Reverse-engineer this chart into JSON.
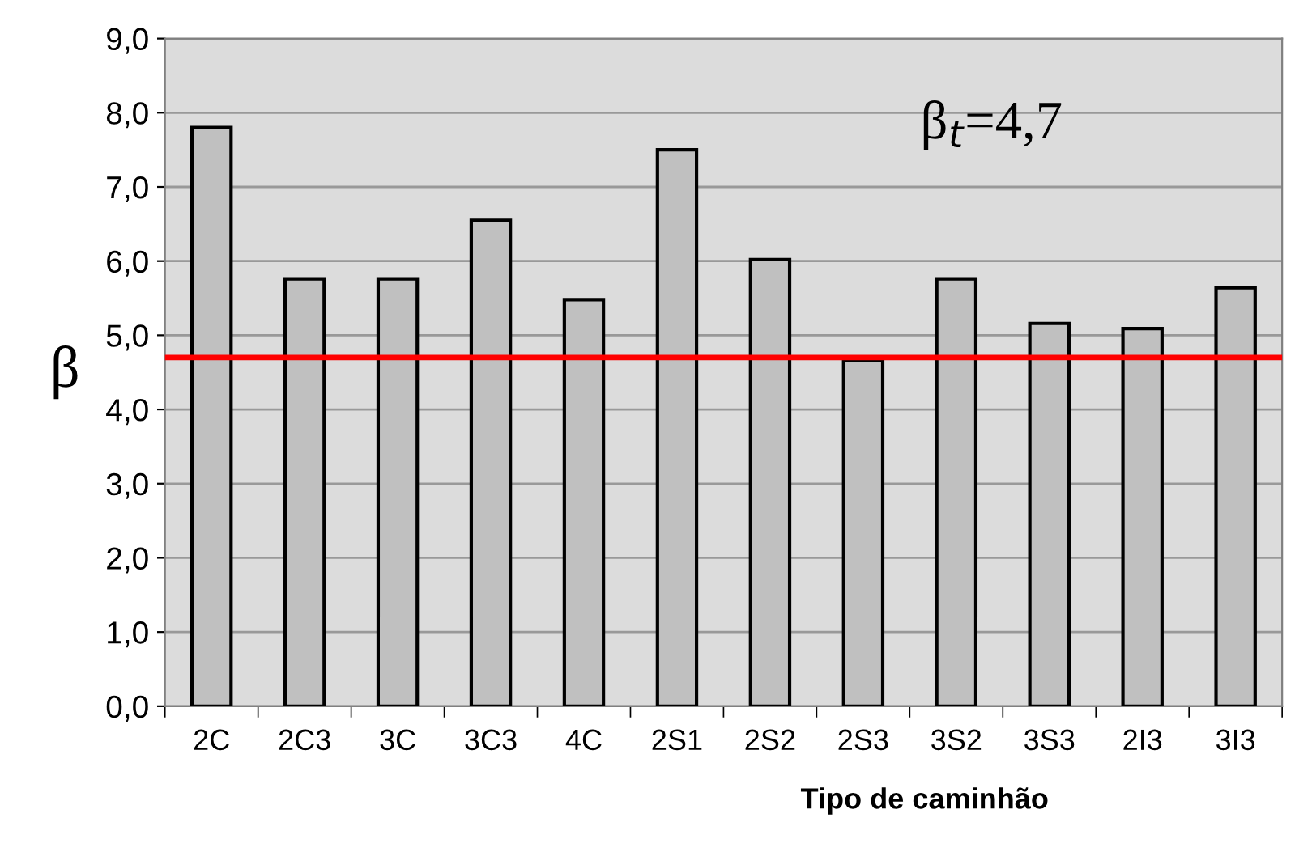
{
  "chart_data": {
    "type": "bar",
    "xlabel": "Tipo de caminhão",
    "ylabel": "β",
    "categories": [
      "2C",
      "2C3",
      "3C",
      "3C3",
      "4C",
      "2S1",
      "2S2",
      "2S3",
      "3S2",
      "3S3",
      "2I3",
      "3I3"
    ],
    "values": [
      7.8,
      5.76,
      5.76,
      6.55,
      5.48,
      7.5,
      6.02,
      4.66,
      5.76,
      5.16,
      5.09,
      5.64
    ],
    "color": "#c0c0c0",
    "ylim": [
      0,
      9
    ],
    "yticks": [
      {
        "value": 0,
        "label": "0,0"
      },
      {
        "value": 1,
        "label": "1,0"
      },
      {
        "value": 2,
        "label": "2,0"
      },
      {
        "value": 3,
        "label": "3,0"
      },
      {
        "value": 4,
        "label": "4,0"
      },
      {
        "value": 5,
        "label": "5,0"
      },
      {
        "value": 6,
        "label": "6,0"
      },
      {
        "value": 7,
        "label": "7,0"
      },
      {
        "value": 8,
        "label": "8,0"
      },
      {
        "value": 9,
        "label": "9,0"
      }
    ],
    "grid": "y",
    "annotations": [
      "β$_{t}$=4,7"
    ],
    "ref_lines": [
      {
        "axis": "y",
        "value": 4.7,
        "color": "#ff0000",
        "line_style": "solid"
      }
    ]
  }
}
